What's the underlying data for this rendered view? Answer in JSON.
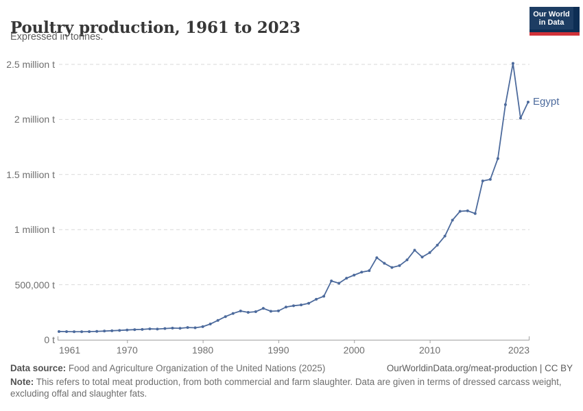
{
  "header": {
    "title": "Poultry production, 1961 to 2023",
    "subtitle": "Expressed in tonnes.",
    "logo_line1": "Our World",
    "logo_line2": "in Data"
  },
  "colors": {
    "series_blue": "#4c6a9c",
    "gridline": "#d9d9d9",
    "axis": "#a0a0a0",
    "logo_navy": "#1d3d63",
    "logo_red": "#d13239"
  },
  "chart_data": {
    "type": "line",
    "title": "Poultry production, 1961 to 2023",
    "subtitle": "Expressed in tonnes.",
    "entity": "Egypt",
    "unit": "tonnes",
    "grid": "dashed-horizontal",
    "legend": "entity-label-at-line-end",
    "xlim": [
      1961,
      2023
    ],
    "ylim": [
      0,
      2500000
    ],
    "x": [
      1961,
      1962,
      1963,
      1964,
      1965,
      1966,
      1967,
      1968,
      1969,
      1970,
      1971,
      1972,
      1973,
      1974,
      1975,
      1976,
      1977,
      1978,
      1979,
      1980,
      1981,
      1982,
      1983,
      1984,
      1985,
      1986,
      1987,
      1988,
      1989,
      1990,
      1991,
      1992,
      1993,
      1994,
      1995,
      1996,
      1997,
      1998,
      1999,
      2000,
      2001,
      2002,
      2003,
      2004,
      2005,
      2006,
      2007,
      2008,
      2009,
      2010,
      2011,
      2012,
      2013,
      2014,
      2015,
      2016,
      2017,
      2018,
      2019,
      2020,
      2021,
      2022,
      2023
    ],
    "series": [
      {
        "name": "Egypt",
        "color": "#4c6a9c",
        "values": [
          75000,
          74000,
          73000,
          73000,
          74000,
          76000,
          79000,
          82000,
          85000,
          89000,
          92000,
          94000,
          99000,
          97000,
          102000,
          106000,
          104000,
          111000,
          109000,
          119000,
          143000,
          176000,
          210000,
          239000,
          261000,
          249000,
          255000,
          285000,
          259000,
          262000,
          297000,
          309000,
          316000,
          331000,
          368000,
          395000,
          534000,
          513000,
          559000,
          587000,
          614000,
          627000,
          745000,
          694000,
          656000,
          673000,
          725000,
          813000,
          751000,
          791000,
          859000,
          941000,
          1086000,
          1166000,
          1171000,
          1146000,
          1442000,
          1456000,
          1645000,
          2135000,
          2509000,
          2012000,
          2158000
        ]
      }
    ],
    "yticks": [
      {
        "value": 0,
        "label": "0 t"
      },
      {
        "value": 500000,
        "label": "500,000 t"
      },
      {
        "value": 1000000,
        "label": "1 million t"
      },
      {
        "value": 1500000,
        "label": "1.5 million t"
      },
      {
        "value": 2000000,
        "label": "2 million t"
      },
      {
        "value": 2500000,
        "label": "2.5 million t"
      }
    ],
    "xticks": [
      {
        "value": 1961,
        "label": "1961",
        "align": "left"
      },
      {
        "value": 1970,
        "label": "1970",
        "align": "center"
      },
      {
        "value": 1980,
        "label": "1980",
        "align": "center"
      },
      {
        "value": 1990,
        "label": "1990",
        "align": "center"
      },
      {
        "value": 2000,
        "label": "2000",
        "align": "center"
      },
      {
        "value": 2010,
        "label": "2010",
        "align": "center"
      },
      {
        "value": 2023,
        "label": "2023",
        "align": "right"
      }
    ]
  },
  "footer": {
    "data_source_label": "Data source:",
    "data_source_value": "Food and Agriculture Organization of the United Nations (2025)",
    "url_citation": "OurWorldinData.org/meat-production | CC BY",
    "note_label": "Note:",
    "note_text": "This refers to total meat production, from both commercial and farm slaughter. Data are given in terms of dressed carcass weight, excluding offal and slaughter fats."
  }
}
